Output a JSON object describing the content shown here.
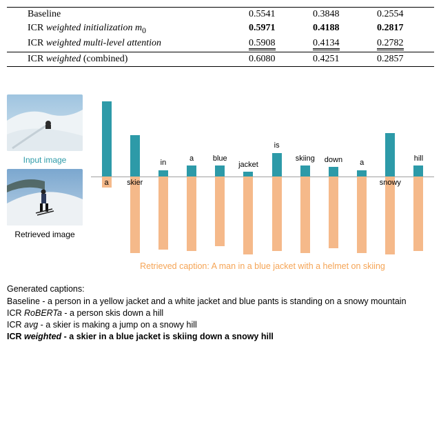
{
  "table": {
    "rows": [
      {
        "label": "Baseline",
        "label_style": "plain",
        "v1": "0.5541",
        "v2": "0.3848",
        "v3": "0.2554",
        "style": "plain"
      },
      {
        "label_prefix": "ICR ",
        "label_em": "weighted initialization m",
        "label_sub": "0",
        "label_style": "italic",
        "v1": "0.5971",
        "v2": "0.4188",
        "v3": "0.2817",
        "style": "bold"
      },
      {
        "label_prefix": "ICR ",
        "label_em": "weighted multi-level attention",
        "label_style": "italic",
        "v1": "0.5908",
        "v2": "0.4134",
        "v3": "0.2782",
        "style": "dbl"
      },
      {
        "label_prefix": "ICR ",
        "label_em": "weighted",
        "label_suffix": " (combined)",
        "label_style": "italic",
        "v1": "0.6080",
        "v2": "0.4251",
        "v3": "0.2857",
        "style": "plain",
        "border_top": true
      }
    ]
  },
  "images": {
    "input_label": "Input image",
    "retrieved_label": "Retrieved image"
  },
  "chart": {
    "axis_y_pct": 50,
    "up_color": "#2d9aa8",
    "down_color": "#f5b98a",
    "words": [
      "a",
      "skier",
      "in",
      "a",
      "blue",
      "jacket",
      "is",
      "skiing",
      "down",
      "a",
      "snowy",
      "hill"
    ],
    "up_values": [
      95,
      52,
      8,
      14,
      14,
      6,
      30,
      14,
      12,
      8,
      55,
      14
    ],
    "down_values": [
      14,
      96,
      92,
      94,
      88,
      98,
      94,
      96,
      90,
      96,
      98,
      94
    ],
    "label_on_top": [
      true,
      true,
      false,
      false,
      false,
      false,
      false,
      false,
      false,
      false,
      true,
      false
    ],
    "retrieved_caption": "Retrieved caption: A man in a blue jacket with a helmet on skiing"
  },
  "captions": {
    "heading": "Generated captions:",
    "lines": [
      {
        "prefix": "Baseline - ",
        "text": "a person in a yellow jacket and a white jacket and blue pants is standing on a snowy mountain",
        "em": false,
        "bold": false
      },
      {
        "prefix": "ICR ",
        "em_word": "RoBERTa",
        "text": " - a person skis down a hill",
        "em": true,
        "bold": false
      },
      {
        "prefix": "ICR ",
        "em_word": "avg",
        "text": " - a skier is making a jump on a snowy hill",
        "em": true,
        "bold": false
      },
      {
        "prefix": "ICR ",
        "em_word": "weighted",
        "text": "  - a skier in a blue jacket is skiing down a snowy hill",
        "em": true,
        "bold": true
      }
    ]
  }
}
